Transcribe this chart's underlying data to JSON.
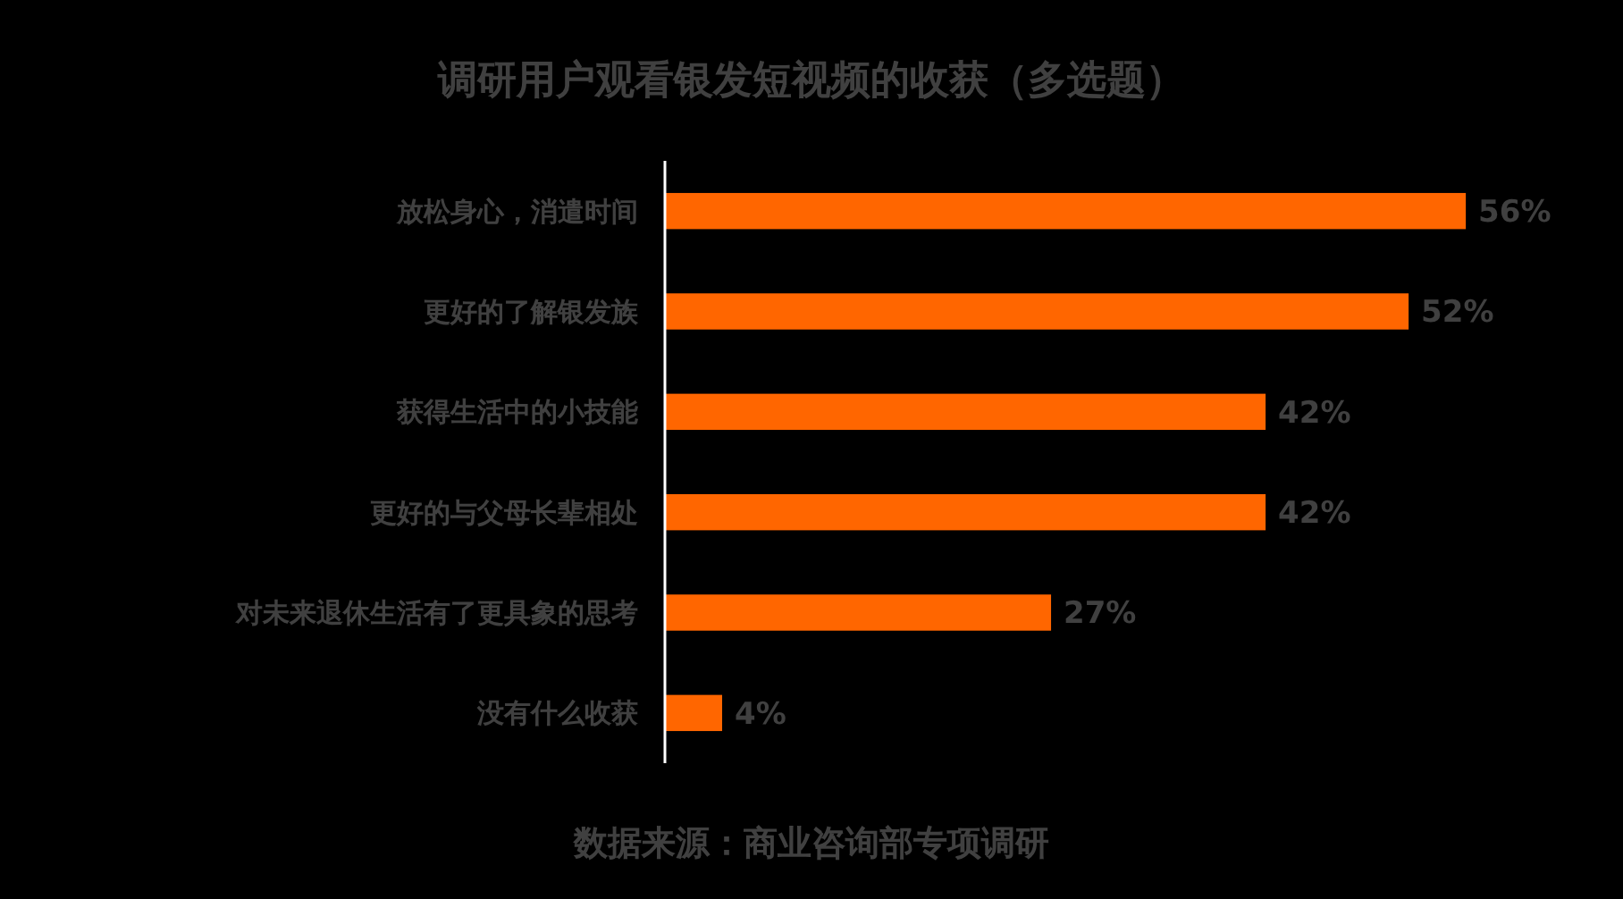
{
  "chart_data": {
    "type": "bar",
    "orientation": "horizontal",
    "title": "调研用户观看银发短视频的收获（多选题）",
    "categories": [
      "放松身心，消遣时间",
      "更好的了解银发族",
      "获得生活中的小技能",
      "更好的与父母长辈相处",
      "对未来退休生活有了更具象的思考",
      "没有什么收获"
    ],
    "values": [
      56,
      52,
      42,
      42,
      27,
      4
    ],
    "value_labels": [
      "56%",
      "52%",
      "42%",
      "42%",
      "27%",
      "4%"
    ],
    "color": "#ff6600",
    "annotations": [
      "数据来源：商业咨询部专项调研"
    ]
  }
}
